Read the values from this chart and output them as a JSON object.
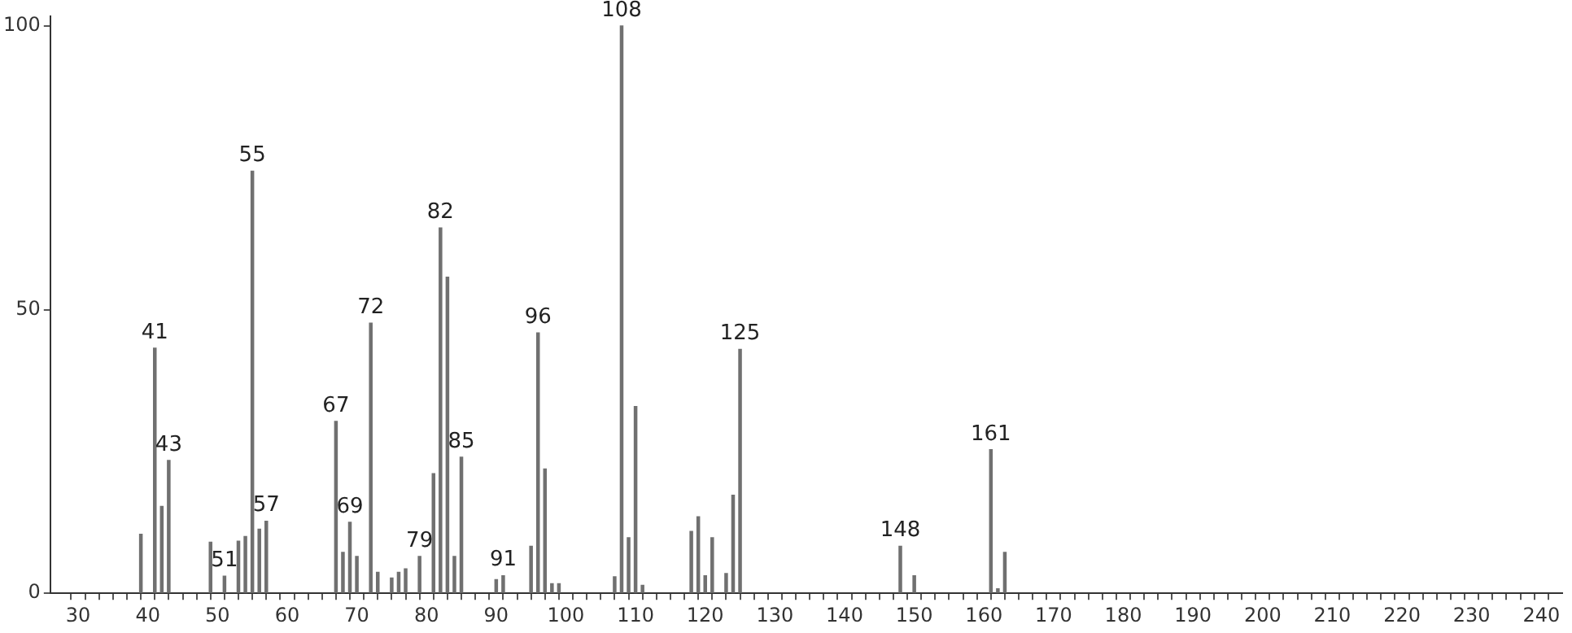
{
  "chart_data": {
    "type": "bar",
    "x": [
      39,
      41,
      42,
      43,
      49,
      51,
      53,
      54,
      55,
      56,
      57,
      67,
      68,
      69,
      70,
      72,
      73,
      75,
      76,
      77,
      79,
      81,
      82,
      83,
      84,
      85,
      90,
      91,
      95,
      96,
      97,
      98,
      99,
      107,
      108,
      109,
      110,
      111,
      118,
      119,
      120,
      121,
      123,
      124,
      125,
      148,
      150,
      161,
      162,
      163
    ],
    "values": [
      10.4,
      43.2,
      15.3,
      23.4,
      9,
      3,
      9.2,
      10,
      74.4,
      11.3,
      12.7,
      30.3,
      7.2,
      12.5,
      6.5,
      47.6,
      3.7,
      2.7,
      3.7,
      4.3,
      6.5,
      21.1,
      64.4,
      55.7,
      6.5,
      24,
      2.4,
      3.1,
      8.3,
      45.9,
      21.9,
      1.7,
      1.7,
      2.9,
      100,
      9.8,
      32.9,
      1.4,
      10.9,
      13.5,
      3.1,
      9.8,
      3.5,
      17.3,
      43,
      8.3,
      3.1,
      25.3,
      0.8,
      7.2
    ],
    "color": "#707070",
    "xlim": [
      26,
      243
    ],
    "ylim": [
      0,
      101.7
    ],
    "yticks": [
      0,
      50,
      100
    ],
    "xticks": [
      30,
      {
        "value": 32,
        "label": null
      },
      {
        "value": 34,
        "label": null
      },
      {
        "value": 36,
        "label": null
      },
      {
        "value": 38,
        "label": null
      },
      40,
      {
        "value": 42,
        "label": null
      },
      {
        "value": 44,
        "label": null
      },
      {
        "value": 46,
        "label": null
      },
      {
        "value": 48,
        "label": null
      },
      50,
      {
        "value": 52,
        "label": null
      },
      {
        "value": 54,
        "label": null
      },
      {
        "value": 56,
        "label": null
      },
      {
        "value": 58,
        "label": null
      },
      60,
      {
        "value": 62,
        "label": null
      },
      {
        "value": 64,
        "label": null
      },
      {
        "value": 66,
        "label": null
      },
      {
        "value": 68,
        "label": null
      },
      70,
      {
        "value": 72,
        "label": null
      },
      {
        "value": 74,
        "label": null
      },
      {
        "value": 76,
        "label": null
      },
      {
        "value": 78,
        "label": null
      },
      80,
      {
        "value": 82,
        "label": null
      },
      {
        "value": 84,
        "label": null
      },
      {
        "value": 86,
        "label": null
      },
      {
        "value": 88,
        "label": null
      },
      90,
      {
        "value": 92,
        "label": null
      },
      {
        "value": 94,
        "label": null
      },
      {
        "value": 96,
        "label": null
      },
      {
        "value": 98,
        "label": null
      },
      100,
      {
        "value": 102,
        "label": null
      },
      {
        "value": 104,
        "label": null
      },
      {
        "value": 106,
        "label": null
      },
      {
        "value": 108,
        "label": null
      },
      110,
      {
        "value": 112,
        "label": null
      },
      {
        "value": 114,
        "label": null
      },
      {
        "value": 116,
        "label": null
      },
      {
        "value": 118,
        "label": null
      },
      120,
      {
        "value": 122,
        "label": null
      },
      {
        "value": 124,
        "label": null
      },
      {
        "value": 126,
        "label": null
      },
      {
        "value": 128,
        "label": null
      },
      130,
      {
        "value": 132,
        "label": null
      },
      {
        "value": 134,
        "label": null
      },
      {
        "value": 136,
        "label": null
      },
      {
        "value": 138,
        "label": null
      },
      140,
      {
        "value": 142,
        "label": null
      },
      {
        "value": 144,
        "label": null
      },
      {
        "value": 146,
        "label": null
      },
      {
        "value": 148,
        "label": null
      },
      150,
      {
        "value": 152,
        "label": null
      },
      {
        "value": 154,
        "label": null
      },
      {
        "value": 156,
        "label": null
      },
      {
        "value": 158,
        "label": null
      },
      160,
      {
        "value": 162,
        "label": null
      },
      {
        "value": 164,
        "label": null
      },
      {
        "value": 166,
        "label": null
      },
      {
        "value": 168,
        "label": null
      },
      170,
      {
        "value": 172,
        "label": null
      },
      {
        "value": 174,
        "label": null
      },
      {
        "value": 176,
        "label": null
      },
      {
        "value": 178,
        "label": null
      },
      180,
      {
        "value": 182,
        "label": null
      },
      {
        "value": 184,
        "label": null
      },
      {
        "value": 186,
        "label": null
      },
      {
        "value": 188,
        "label": null
      },
      190,
      {
        "value": 192,
        "label": null
      },
      {
        "value": 194,
        "label": null
      },
      {
        "value": 196,
        "label": null
      },
      {
        "value": 198,
        "label": null
      },
      200,
      {
        "value": 202,
        "label": null
      },
      {
        "value": 204,
        "label": null
      },
      {
        "value": 206,
        "label": null
      },
      {
        "value": 208,
        "label": null
      },
      210,
      {
        "value": 212,
        "label": null
      },
      {
        "value": 214,
        "label": null
      },
      {
        "value": 216,
        "label": null
      },
      {
        "value": 218,
        "label": null
      },
      220,
      {
        "value": 222,
        "label": null
      },
      {
        "value": 224,
        "label": null
      },
      {
        "value": 226,
        "label": null
      },
      {
        "value": 228,
        "label": null
      },
      230,
      {
        "value": 232,
        "label": null
      },
      {
        "value": 234,
        "label": null
      },
      {
        "value": 236,
        "label": null
      },
      {
        "value": 238,
        "label": null
      },
      240
    ],
    "grid": false,
    "legend": false,
    "annotations": [
      {
        "text": "41",
        "x": 41,
        "y": 43.2
      },
      {
        "text": "43",
        "x": 43,
        "y": 23.4
      },
      {
        "text": "51",
        "x": 51,
        "y": 3
      },
      {
        "text": "55",
        "x": 55,
        "y": 74.4
      },
      {
        "text": "57",
        "x": 57,
        "y": 12.7
      },
      {
        "text": "67",
        "x": 67,
        "y": 30.3
      },
      {
        "text": "69",
        "x": 69,
        "y": 12.5
      },
      {
        "text": "72",
        "x": 72,
        "y": 47.6
      },
      {
        "text": "79",
        "x": 79,
        "y": 6.5
      },
      {
        "text": "82",
        "x": 82,
        "y": 64.4
      },
      {
        "text": "85",
        "x": 85,
        "y": 24
      },
      {
        "text": "91",
        "x": 91,
        "y": 3.1
      },
      {
        "text": "96",
        "x": 96,
        "y": 45.9
      },
      {
        "text": "108",
        "x": 108,
        "y": 100
      },
      {
        "text": "125",
        "x": 125,
        "y": 43
      },
      {
        "text": "148",
        "x": 148,
        "y": 8.3
      },
      {
        "text": "161",
        "x": 161,
        "y": 25.3
      }
    ]
  }
}
